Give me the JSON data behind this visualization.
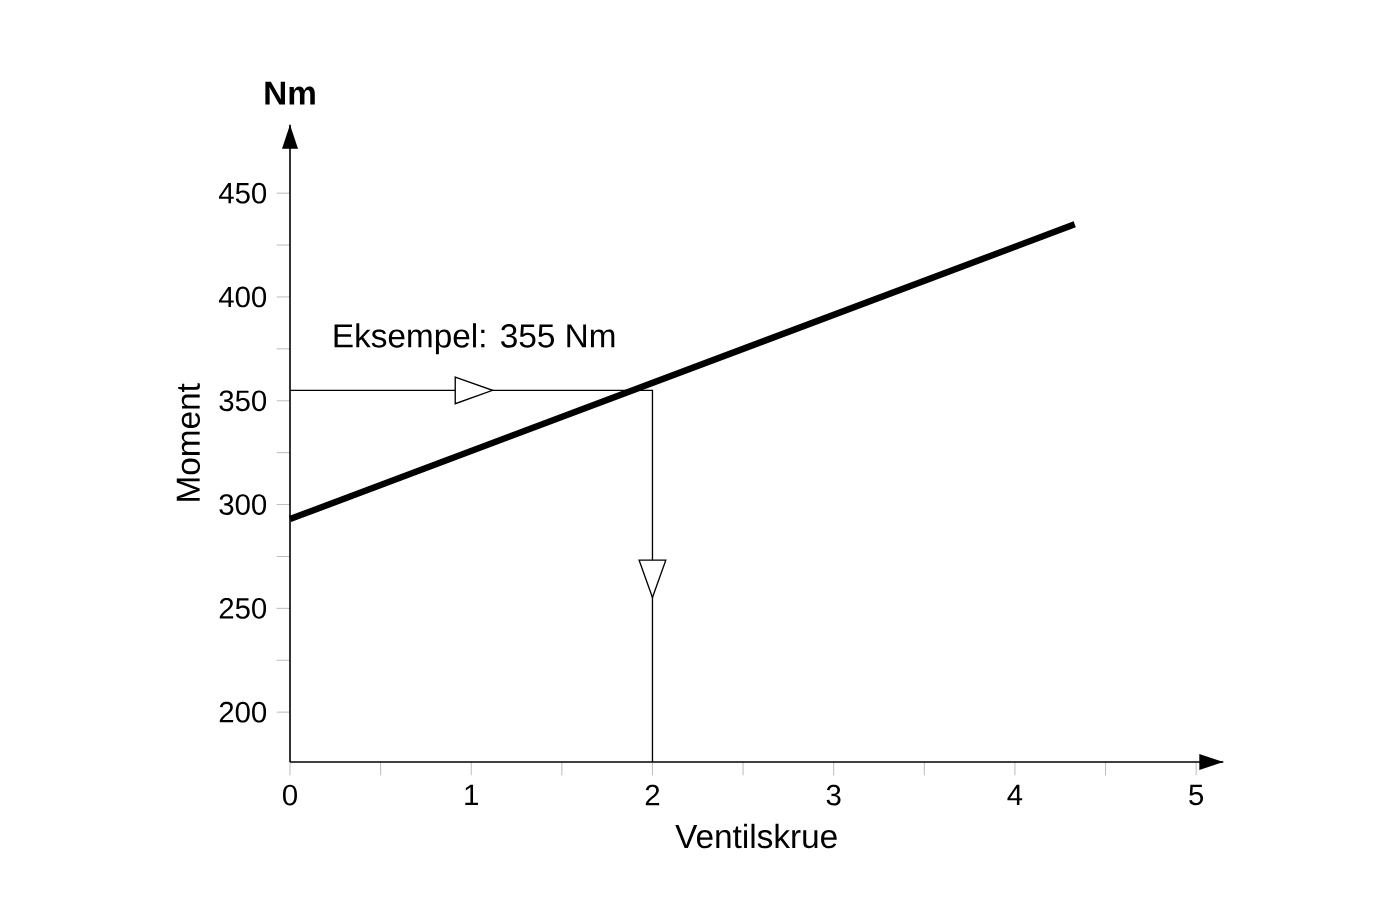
{
  "chart_data": {
    "type": "line",
    "xlabel": "Ventilskrue",
    "ylabel": "Moment",
    "x": [
      0,
      4.33
    ],
    "series": [
      {
        "color": "#000000",
        "values": [
          293,
          435
        ]
      }
    ],
    "xlim": [
      0,
      5.15
    ],
    "ylim": [
      176,
      483
    ],
    "xticks": [
      0,
      1,
      2,
      3,
      4,
      5
    ],
    "yticks": [
      200,
      250,
      300,
      350,
      400,
      450
    ],
    "annotations": [
      "Nm",
      {
        "text": "Eksempel: 355 Nm",
        "x": 2,
        "y": 355
      }
    ],
    "grid": false
  }
}
